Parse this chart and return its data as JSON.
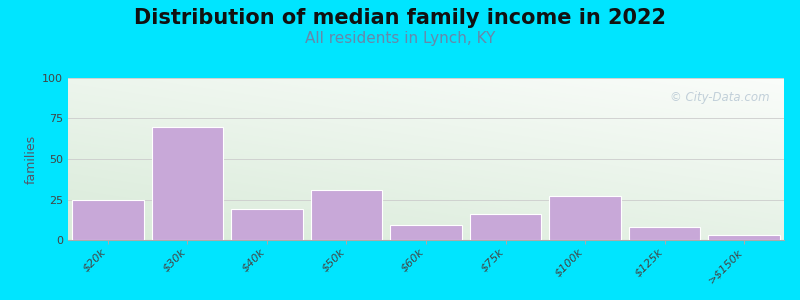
{
  "title": "Distribution of median family income in 2022",
  "subtitle": "All residents in Lynch, KY",
  "ylabel": "families",
  "categories": [
    "$20k",
    "$30k",
    "$40k",
    "$50k",
    "$60k",
    "$75k",
    "$100k",
    "$125k",
    ">$150k"
  ],
  "values": [
    25,
    70,
    19,
    31,
    9,
    16,
    27,
    8,
    3
  ],
  "bar_color": "#c8a8d8",
  "bar_edge_color": "#ffffff",
  "ylim": [
    0,
    100
  ],
  "yticks": [
    0,
    25,
    50,
    75,
    100
  ],
  "background_outer": "#00e5ff",
  "title_fontsize": 15,
  "subtitle_fontsize": 11,
  "subtitle_color": "#6688aa",
  "ylabel_fontsize": 9,
  "tick_label_fontsize": 8,
  "watermark_text": "© City-Data.com",
  "watermark_color": "#b8c8d4",
  "fig_width": 8.0,
  "fig_height": 3.0
}
